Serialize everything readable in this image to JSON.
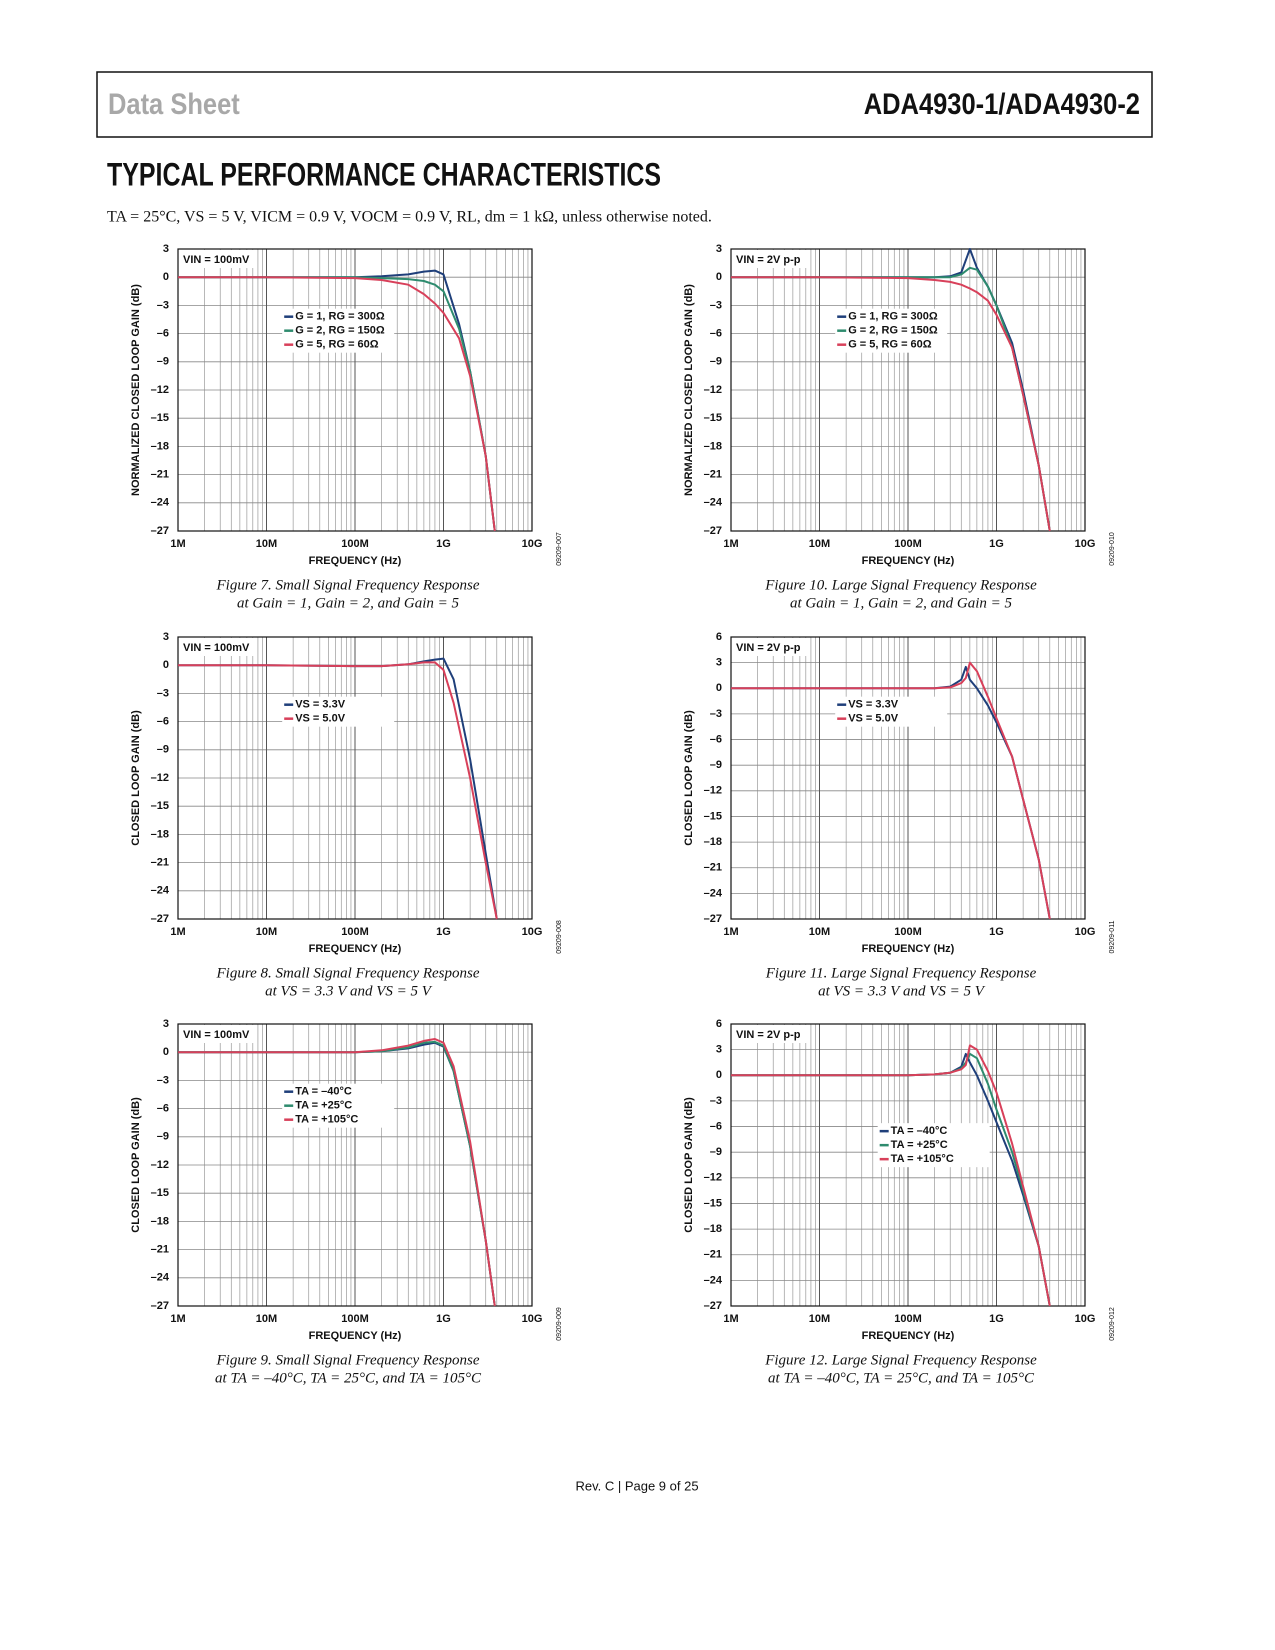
{
  "header": {
    "left": "Data Sheet",
    "right": "ADA4930-1/ADA4930-2"
  },
  "section_title": "TYPICAL PERFORMANCE CHARACTERISTICS",
  "conditions": "TA = 25°C, VS = 5 V, VICM = 0.9 V, VOCM = 0.9 V, RL, dm = 1 kΩ, unless otherwise noted.",
  "footer": "Rev. C | Page 9 of 25",
  "chart_data": [
    {
      "type": "line",
      "annotation": "VIN = 100mV",
      "y_label": "NORMALIZED CLOSED LOOP GAIN (dB)",
      "x_label": "FREQUENCY (Hz)",
      "figure_id": "09209-007",
      "caption": [
        "Figure 7. Small Signal Frequency Response",
        "at Gain = 1, Gain = 2, and Gain = 5"
      ],
      "xscale": "log",
      "grid": true,
      "minor_grid": true,
      "legend": "center-left",
      "xlim": [
        1000000,
        10000000000
      ],
      "xticks": [
        {
          "value": 1000000,
          "label": "1M"
        },
        {
          "value": 10000000,
          "label": "10M"
        },
        {
          "value": 100000000,
          "label": "100M"
        },
        {
          "value": 1000000000,
          "label": "1G"
        },
        {
          "value": 10000000000,
          "label": "10G"
        }
      ],
      "ylim": [
        -27,
        3
      ],
      "yticks": [
        {
          "value": -27,
          "label": "–27"
        },
        {
          "value": -24,
          "label": "–24"
        },
        {
          "value": -21,
          "label": "–21"
        },
        {
          "value": -18,
          "label": "–18"
        },
        {
          "value": -15,
          "label": "–15"
        },
        {
          "value": -12,
          "label": "–12"
        },
        {
          "value": -9,
          "label": "–9"
        },
        {
          "value": -6,
          "label": "–6"
        },
        {
          "value": -3,
          "label": "–3"
        },
        0,
        3
      ],
      "x": [
        1000000,
        10000000,
        100000000,
        200000000,
        400000000,
        600000000,
        800000000,
        1000000000,
        1500000000,
        2000000000,
        3000000000,
        3800000000
      ],
      "series": [
        {
          "name": "G = 1, RG = 300Ω",
          "color": "#1f3f7a",
          "values": [
            0,
            0,
            0,
            0.1,
            0.3,
            0.6,
            0.7,
            0.3,
            -5,
            -10,
            -19,
            -27
          ]
        },
        {
          "name": "G = 2, RG = 150Ω",
          "color": "#2e8b6e",
          "values": [
            0,
            0,
            0,
            -0.1,
            -0.2,
            -0.4,
            -0.8,
            -1.5,
            -5.5,
            -10,
            -19,
            -27
          ]
        },
        {
          "name": "G = 5, RG = 60Ω",
          "color": "#d8405a",
          "values": [
            0,
            0,
            -0.1,
            -0.3,
            -0.8,
            -1.8,
            -2.8,
            -3.8,
            -6.5,
            -10.5,
            -19,
            -27
          ]
        }
      ]
    },
    {
      "type": "line",
      "annotation": "VIN = 2V p-p",
      "y_label": "NORMALIZED CLOSED LOOP GAIN (dB)",
      "x_label": "FREQUENCY (Hz)",
      "figure_id": "09209-010",
      "caption": [
        "Figure 10. Large Signal Frequency Response",
        "at Gain = 1, Gain = 2, and Gain = 5"
      ],
      "xscale": "log",
      "grid": true,
      "minor_grid": true,
      "legend": "center-left",
      "xlim": [
        1000000,
        10000000000
      ],
      "xticks": [
        {
          "value": 1000000,
          "label": "1M"
        },
        {
          "value": 10000000,
          "label": "10M"
        },
        {
          "value": 100000000,
          "label": "100M"
        },
        {
          "value": 1000000000,
          "label": "1G"
        },
        {
          "value": 10000000000,
          "label": "10G"
        }
      ],
      "ylim": [
        -27,
        3
      ],
      "yticks": [
        {
          "value": -27,
          "label": "–27"
        },
        {
          "value": -24,
          "label": "–24"
        },
        {
          "value": -21,
          "label": "–21"
        },
        {
          "value": -18,
          "label": "–18"
        },
        {
          "value": -15,
          "label": "–15"
        },
        {
          "value": -12,
          "label": "–12"
        },
        {
          "value": -9,
          "label": "–9"
        },
        {
          "value": -6,
          "label": "–6"
        },
        {
          "value": -3,
          "label": "–3"
        },
        0,
        3
      ],
      "x": [
        1000000,
        10000000,
        100000000,
        200000000,
        300000000,
        400000000,
        500000000,
        600000000,
        800000000,
        1000000000,
        1500000000,
        2000000000,
        3000000000,
        4000000000
      ],
      "series": [
        {
          "name": "G = 1, RG = 300Ω",
          "color": "#1f3f7a",
          "values": [
            0,
            0,
            0,
            0,
            0.1,
            0.5,
            3,
            1,
            -1,
            -3,
            -7,
            -12,
            -20,
            -27
          ]
        },
        {
          "name": "G = 2, RG = 150Ω",
          "color": "#2e8b6e",
          "values": [
            0,
            0,
            0,
            0,
            0,
            0.3,
            1,
            0.8,
            -1,
            -3,
            -7.5,
            -12.5,
            -20,
            -27
          ]
        },
        {
          "name": "G = 5, RG = 60Ω",
          "color": "#d8405a",
          "values": [
            0,
            0,
            -0.1,
            -0.3,
            -0.5,
            -0.8,
            -1.2,
            -1.6,
            -2.5,
            -4,
            -7.5,
            -12.5,
            -20,
            -27
          ]
        }
      ]
    },
    {
      "type": "line",
      "annotation": "VIN = 100mV",
      "y_label": "CLOSED LOOP GAIN (dB)",
      "x_label": "FREQUENCY (Hz)",
      "figure_id": "09209-008",
      "caption": [
        "Figure 8. Small Signal Frequency Response",
        "at VS = 3.3 V and VS = 5 V"
      ],
      "xscale": "log",
      "grid": true,
      "minor_grid": true,
      "legend": "center-left",
      "xlim": [
        1000000,
        10000000000
      ],
      "xticks": [
        {
          "value": 1000000,
          "label": "1M"
        },
        {
          "value": 10000000,
          "label": "10M"
        },
        {
          "value": 100000000,
          "label": "100M"
        },
        {
          "value": 1000000000,
          "label": "1G"
        },
        {
          "value": 10000000000,
          "label": "10G"
        }
      ],
      "ylim": [
        -27,
        3
      ],
      "yticks": [
        {
          "value": -27,
          "label": "–27"
        },
        {
          "value": -24,
          "label": "–24"
        },
        {
          "value": -21,
          "label": "–21"
        },
        {
          "value": -18,
          "label": "–18"
        },
        {
          "value": -15,
          "label": "–15"
        },
        {
          "value": -12,
          "label": "–12"
        },
        {
          "value": -9,
          "label": "–9"
        },
        {
          "value": -6,
          "label": "–6"
        },
        {
          "value": -3,
          "label": "–3"
        },
        0,
        3
      ],
      "x": [
        1000000,
        10000000,
        100000000,
        200000000,
        400000000,
        600000000,
        800000000,
        1000000000,
        1300000000,
        2000000000,
        3000000000,
        4000000000
      ],
      "series": [
        {
          "name": "VS = 3.3V",
          "color": "#1f3f7a",
          "values": [
            0,
            0,
            -0.1,
            -0.1,
            0.1,
            0.4,
            0.6,
            0.7,
            -1.5,
            -10,
            -20,
            -27
          ]
        },
        {
          "name": "VS = 5.0V",
          "color": "#d8405a",
          "values": [
            0,
            0,
            -0.1,
            -0.1,
            0.1,
            0.3,
            0.3,
            -0.5,
            -4,
            -12,
            -21,
            -27
          ]
        }
      ]
    },
    {
      "type": "line",
      "annotation": "VIN = 2V p-p",
      "y_label": "CLOSED LOOP GAIN (dB)",
      "x_label": "FREQUENCY (Hz)",
      "figure_id": "09209-011",
      "caption": [
        "Figure 11. Large Signal Frequency Response",
        "at VS = 3.3 V and VS = 5 V"
      ],
      "xscale": "log",
      "grid": true,
      "minor_grid": true,
      "legend": "center-left",
      "xlim": [
        1000000,
        10000000000
      ],
      "xticks": [
        {
          "value": 1000000,
          "label": "1M"
        },
        {
          "value": 10000000,
          "label": "10M"
        },
        {
          "value": 100000000,
          "label": "100M"
        },
        {
          "value": 1000000000,
          "label": "1G"
        },
        {
          "value": 10000000000,
          "label": "10G"
        }
      ],
      "ylim": [
        -27,
        6
      ],
      "yticks": [
        {
          "value": -27,
          "label": "–27"
        },
        {
          "value": -24,
          "label": "–24"
        },
        {
          "value": -21,
          "label": "–21"
        },
        {
          "value": -18,
          "label": "–18"
        },
        {
          "value": -15,
          "label": "–15"
        },
        {
          "value": -12,
          "label": "–12"
        },
        {
          "value": -9,
          "label": "–9"
        },
        {
          "value": -6,
          "label": "–6"
        },
        {
          "value": -3,
          "label": "–3"
        },
        0,
        3,
        6
      ],
      "x": [
        1000000,
        10000000,
        100000000,
        200000000,
        300000000,
        400000000,
        450000000,
        500000000,
        600000000,
        800000000,
        1000000000,
        1500000000,
        2000000000,
        3000000000,
        4000000000
      ],
      "series": [
        {
          "name": "VS = 3.3V",
          "color": "#1f3f7a",
          "values": [
            0,
            0,
            0,
            0,
            0.2,
            1,
            2.5,
            1,
            0,
            -2,
            -4,
            -8,
            -13,
            -20,
            -27
          ]
        },
        {
          "name": "VS = 5.0V",
          "color": "#d8405a",
          "values": [
            0,
            0,
            0,
            0,
            0.1,
            0.6,
            1.2,
            3,
            2,
            -1,
            -3.5,
            -8,
            -13,
            -20,
            -27
          ]
        }
      ]
    },
    {
      "type": "line",
      "annotation": "VIN = 100mV",
      "y_label": "CLOSED LOOP GAIN (dB)",
      "x_label": "FREQUENCY (Hz)",
      "figure_id": "09209-009",
      "caption": [
        "Figure 9. Small Signal Frequency Response",
        "at TA = –40°C, TA = 25°C, and TA = 105°C"
      ],
      "xscale": "log",
      "grid": true,
      "minor_grid": true,
      "legend": "center-left",
      "xlim": [
        1000000,
        10000000000
      ],
      "xticks": [
        {
          "value": 1000000,
          "label": "1M"
        },
        {
          "value": 10000000,
          "label": "10M"
        },
        {
          "value": 100000000,
          "label": "100M"
        },
        {
          "value": 1000000000,
          "label": "1G"
        },
        {
          "value": 10000000000,
          "label": "10G"
        }
      ],
      "ylim": [
        -27,
        3
      ],
      "yticks": [
        {
          "value": -27,
          "label": "–27"
        },
        {
          "value": -24,
          "label": "–24"
        },
        {
          "value": -21,
          "label": "–21"
        },
        {
          "value": -18,
          "label": "–18"
        },
        {
          "value": -15,
          "label": "–15"
        },
        {
          "value": -12,
          "label": "–12"
        },
        {
          "value": -9,
          "label": "–9"
        },
        {
          "value": -6,
          "label": "–6"
        },
        {
          "value": -3,
          "label": "–3"
        },
        0,
        3
      ],
      "x": [
        1000000,
        10000000,
        100000000,
        200000000,
        400000000,
        600000000,
        800000000,
        1000000000,
        1300000000,
        2000000000,
        3000000000,
        3800000000
      ],
      "series": [
        {
          "name": "TA = –40°C",
          "color": "#1f3f7a",
          "values": [
            0,
            0,
            0,
            0.1,
            0.4,
            0.8,
            1,
            0.6,
            -2,
            -10,
            -20,
            -27
          ]
        },
        {
          "name": "TA = +25°C",
          "color": "#2e8b6e",
          "values": [
            0,
            0,
            0,
            0.1,
            0.5,
            1,
            1.1,
            0.7,
            -2,
            -10,
            -20,
            -27
          ]
        },
        {
          "name": "TA = +105°C",
          "color": "#d8405a",
          "values": [
            0,
            0,
            0,
            0.2,
            0.7,
            1.2,
            1.4,
            1,
            -1.5,
            -9.5,
            -20,
            -27
          ]
        }
      ]
    },
    {
      "type": "line",
      "annotation": "VIN = 2V p-p",
      "y_label": "CLOSED LOOP GAIN (dB)",
      "x_label": "FREQUENCY (Hz)",
      "figure_id": "09209-012",
      "caption": [
        "Figure 12. Large Signal Frequency Response",
        "at TA = –40°C, TA = 25°C, and TA = 105°C"
      ],
      "xscale": "log",
      "grid": true,
      "minor_grid": true,
      "legend": "center",
      "xlim": [
        1000000,
        10000000000
      ],
      "xticks": [
        {
          "value": 1000000,
          "label": "1M"
        },
        {
          "value": 10000000,
          "label": "10M"
        },
        {
          "value": 100000000,
          "label": "100M"
        },
        {
          "value": 1000000000,
          "label": "1G"
        },
        {
          "value": 10000000000,
          "label": "10G"
        }
      ],
      "ylim": [
        -27,
        6
      ],
      "yticks": [
        {
          "value": -27,
          "label": "–27"
        },
        {
          "value": -24,
          "label": "–24"
        },
        {
          "value": -21,
          "label": "–21"
        },
        {
          "value": -18,
          "label": "–18"
        },
        {
          "value": -15,
          "label": "–15"
        },
        {
          "value": -12,
          "label": "–12"
        },
        {
          "value": -9,
          "label": "–9"
        },
        {
          "value": -6,
          "label": "–6"
        },
        {
          "value": -3,
          "label": "–3"
        },
        0,
        3,
        6
      ],
      "x": [
        1000000,
        10000000,
        100000000,
        200000000,
        300000000,
        400000000,
        450000000,
        500000000,
        600000000,
        800000000,
        1000000000,
        1500000000,
        2000000000,
        3000000000,
        4000000000
      ],
      "series": [
        {
          "name": "TA = –40°C",
          "color": "#1f3f7a",
          "values": [
            0,
            0,
            0,
            0.1,
            0.3,
            1,
            2.5,
            1.5,
            0,
            -3,
            -5.5,
            -10,
            -14,
            -20,
            -27
          ]
        },
        {
          "name": "TA = +25°C",
          "color": "#2e8b6e",
          "values": [
            0,
            0,
            0,
            0.1,
            0.3,
            0.8,
            1.5,
            2.5,
            2,
            -1,
            -4,
            -9,
            -13.5,
            -20,
            -27
          ]
        },
        {
          "name": "TA = +105°C",
          "color": "#d8405a",
          "values": [
            0,
            0,
            0,
            0.1,
            0.3,
            0.7,
            1.2,
            3.5,
            3,
            0.5,
            -2,
            -8,
            -13,
            -20,
            -27
          ]
        }
      ]
    }
  ]
}
